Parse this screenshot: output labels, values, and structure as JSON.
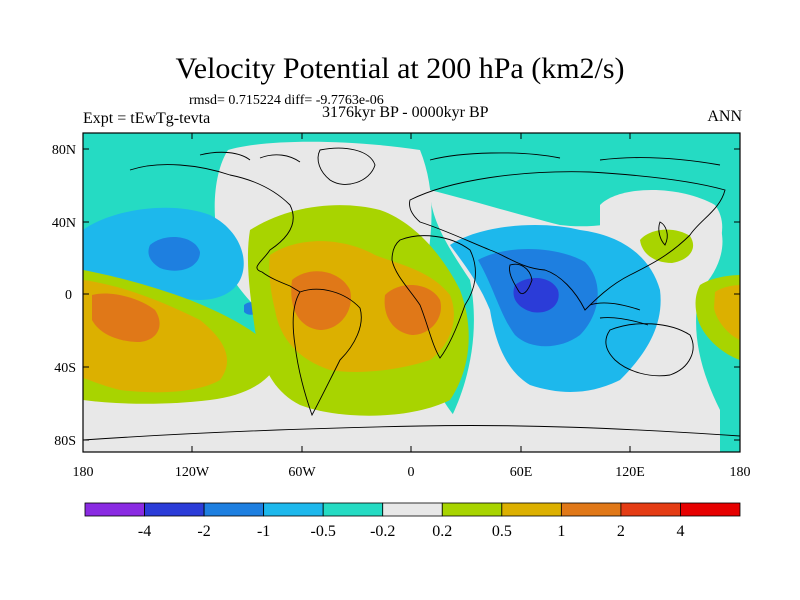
{
  "title": "Velocity Potential at 200 hPa (km2/s)",
  "stats_line": "rmsd= 0.715224  diff= -9.7763e-06",
  "left_label": "Expt = tEwTg-tevta",
  "center_label": "3176kyr BP - 0000kyr BP",
  "right_label": "ANN",
  "y_axis_labels": [
    "80N",
    "40N",
    "0",
    "40S",
    "80S"
  ],
  "x_axis_labels": [
    "180",
    "120W",
    "60W",
    "0",
    "60E",
    "120E",
    "180"
  ],
  "colorbar": {
    "labels": [
      "-4",
      "-2",
      "-1",
      "-0.5",
      "-0.2",
      "0.2",
      "0.5",
      "1",
      "2",
      "4"
    ],
    "colors": [
      "#8a2be2",
      "#2b3cd8",
      "#1e7fe0",
      "#1db8ec",
      "#25dbc3",
      "#e8e8e8",
      "#a8d400",
      "#dcb000",
      "#e07818",
      "#e43c14",
      "#e60000"
    ]
  },
  "palette": {
    "ocean_background": "#25dbc3",
    "neutral": "#e8e8e8",
    "pos_low": "#a8d400",
    "pos_mid": "#dcb000",
    "pos_high": "#e07818",
    "neg_low": "#1db8ec",
    "neg_mid": "#1e7fe0",
    "neg_high": "#2b3cd8"
  }
}
